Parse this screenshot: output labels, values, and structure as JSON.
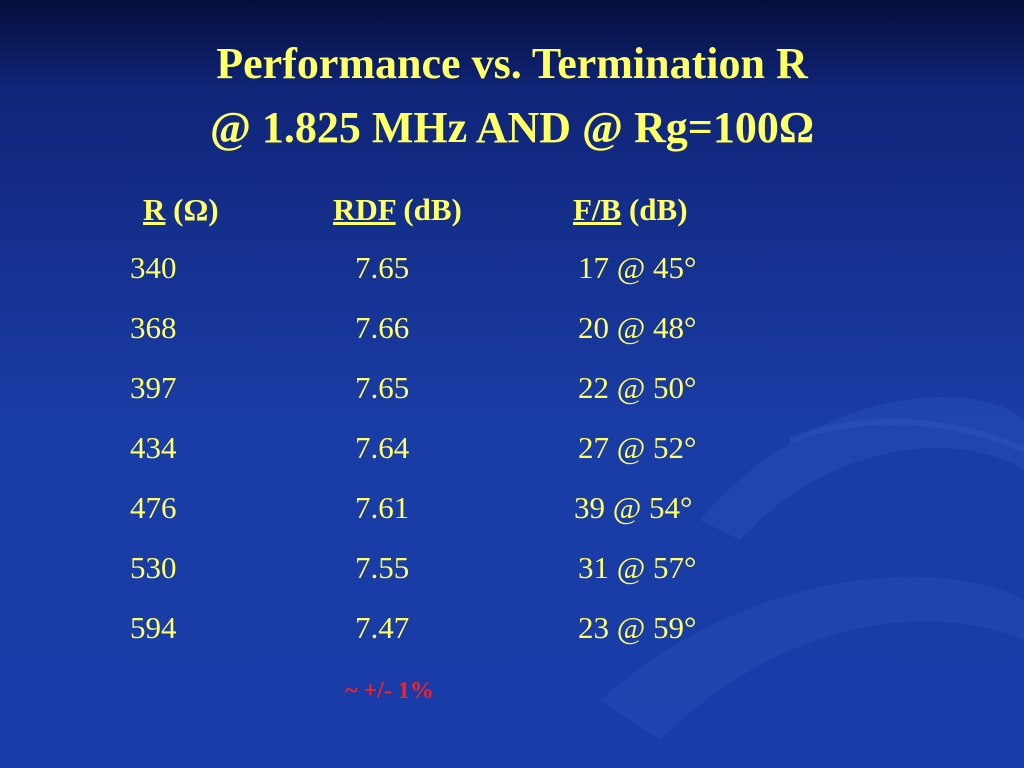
{
  "title": {
    "line1": "Performance vs. Termination R",
    "line2": "@ 1.825 MHz AND @ Rg=100Ω"
  },
  "table": {
    "header": [
      {
        "name": "R",
        "unit": "(Ω)"
      },
      {
        "name": "RDF",
        "unit": "(dB)"
      },
      {
        "name": "F/B",
        "unit": "(dB)"
      }
    ],
    "rows": [
      [
        340,
        7.65,
        "17 @ 45°"
      ],
      [
        368,
        7.66,
        "20 @ 48°"
      ],
      [
        397,
        7.65,
        "22 @ 50°"
      ],
      [
        434,
        7.64,
        "27 @ 52°"
      ],
      [
        476,
        7.61,
        "39 @ 54°"
      ],
      [
        530,
        7.55,
        "31 @ 57°"
      ],
      [
        594,
        7.47,
        "23 @ 59°"
      ]
    ]
  },
  "note": "~ +/- 1%"
}
